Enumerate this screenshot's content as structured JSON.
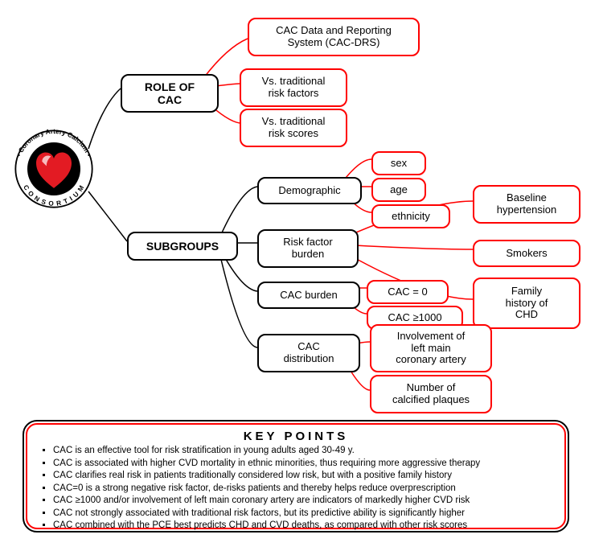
{
  "logo": {
    "outer_text_top": "Coronary Artery Calcium",
    "outer_text_bottom": "CONSORTIUM"
  },
  "root": {
    "role": {
      "label": "ROLE OF\nCAC"
    },
    "subgroups": {
      "label": "SUBGROUPS"
    }
  },
  "role_children": {
    "drs": "CAC Data and Reporting\nSystem (CAC-DRS)",
    "vs_factors": "Vs. traditional\nrisk factors",
    "vs_scores": "Vs. traditional\nrisk scores"
  },
  "subgroup_children": {
    "demographic": "Demographic",
    "riskfactor": "Risk factor\nburden",
    "cacburden": "CAC burden",
    "cacdist": "CAC\ndistribution"
  },
  "demographic_children": {
    "sex": "sex",
    "age": "age",
    "ethnicity": "ethnicity"
  },
  "riskfactor_children": {
    "htn": "Baseline\nhypertension",
    "smokers": "Smokers",
    "fhx": "Family\nhistory of\nCHD"
  },
  "cacburden_children": {
    "zero": "CAC = 0",
    "thousand": "CAC ≥1000"
  },
  "cacdist_children": {
    "leftmain": "Involvement of\nleft main\ncoronary artery",
    "plaques": "Number of\ncalcified plaques"
  },
  "keypoints": {
    "title": "KEY POINTS",
    "items": [
      "CAC is an effective tool for risk stratification in young adults aged 30-49 y.",
      "CAC is associated with higher CVD mortality in ethnic minorities, thus requiring more aggressive therapy",
      "CAC clarifies real risk in patients traditionally considered low risk, but with a positive family history",
      "CAC=0 is a strong negative risk factor, de-risks patients and thereby helps reduce overprescription",
      "CAC ≥1000 and/or involvement of left main coronary artery are indicators of markedly higher CVD risk",
      "CAC not strongly associated with traditional risk factors, but its predictive ability is significantly higher",
      "CAC combined with the PCE best predicts CHD and CVD deaths, as compared with other risk scores"
    ]
  },
  "colors": {
    "red": "#f00",
    "black": "#000",
    "heart_red": "#e31b23",
    "heart_black": "#000"
  }
}
